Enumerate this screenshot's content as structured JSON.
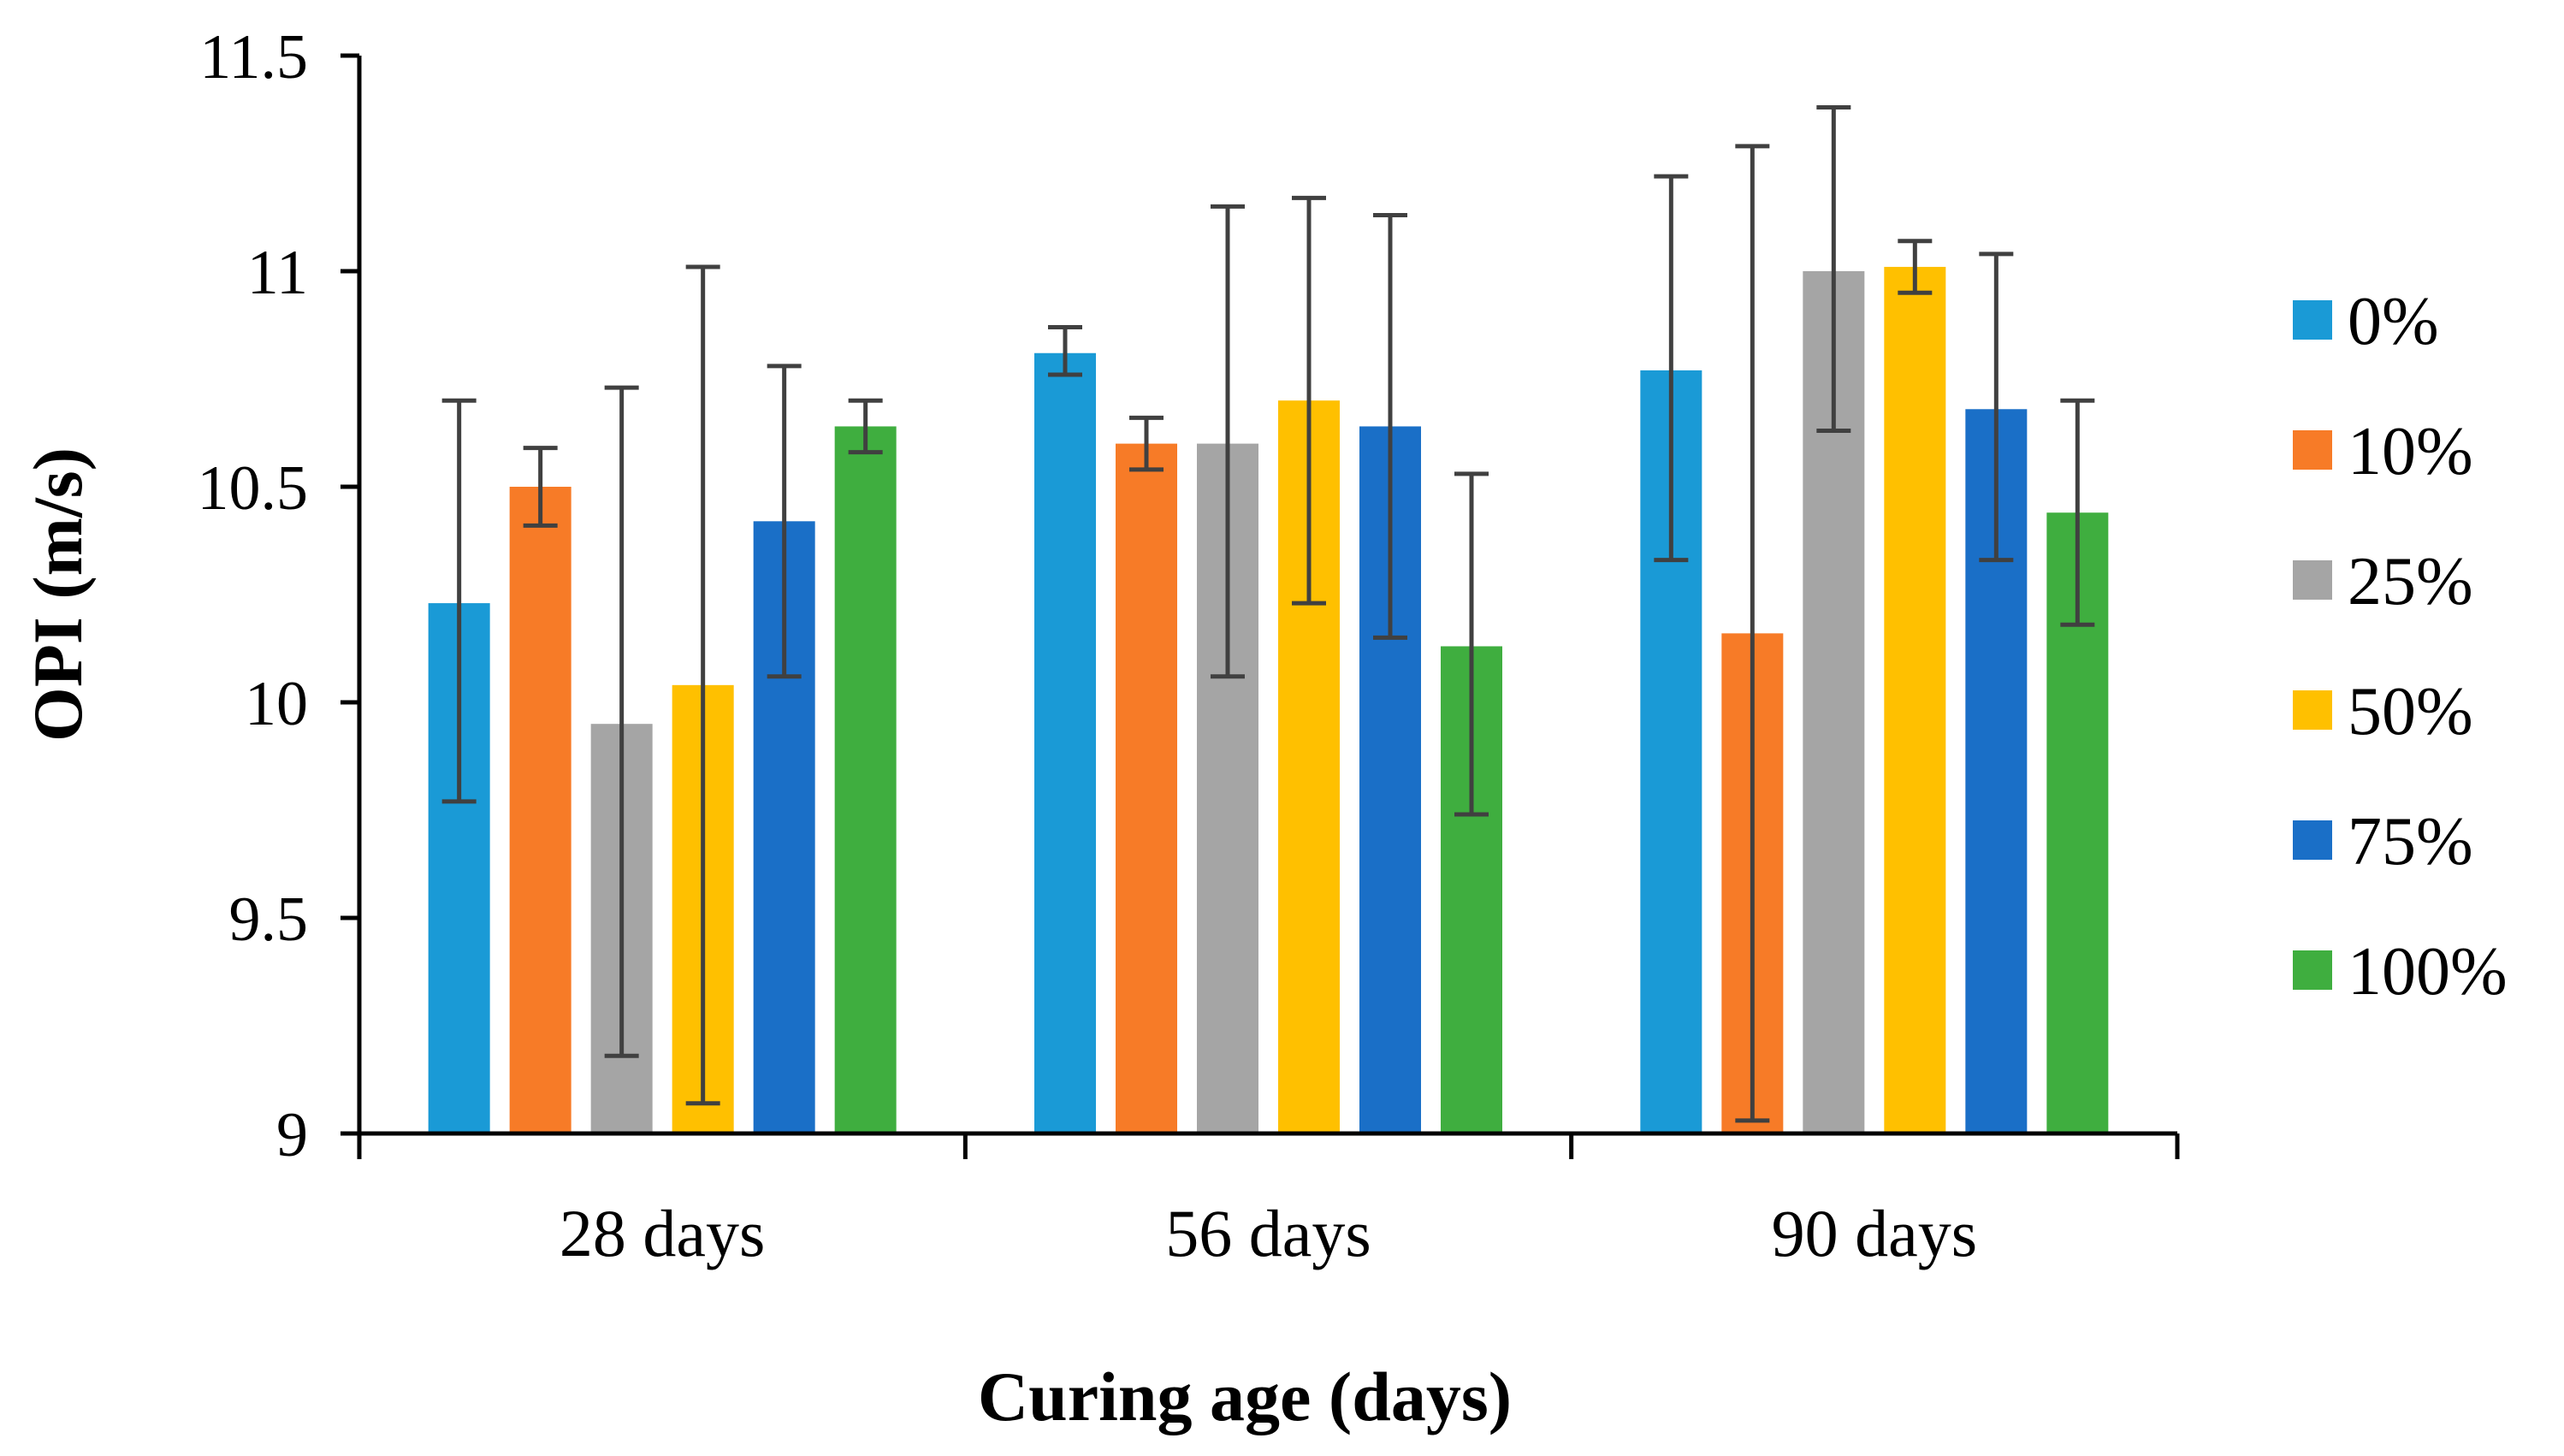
{
  "chart_data": {
    "type": "bar",
    "title": "",
    "xlabel": "Curing age (days)",
    "ylabel": "OPI (m/s)",
    "ylim": [
      9,
      11.5
    ],
    "yticks": [
      "9",
      "9.5",
      "10",
      "10.5",
      "11",
      "11.5"
    ],
    "ytick_values": [
      9,
      9.5,
      10,
      10.5,
      11,
      11.5
    ],
    "categories": [
      "28 days",
      "56 days",
      "90 days"
    ],
    "legend_position": "right",
    "series": [
      {
        "name": "0%",
        "color": "#1a9ad6",
        "values": [
          10.23,
          10.81,
          10.77
        ],
        "error_low": [
          9.77,
          10.76,
          10.33
        ],
        "error_high": [
          10.7,
          10.87,
          11.22
        ]
      },
      {
        "name": "10%",
        "color": "#f77b27",
        "values": [
          10.5,
          10.6,
          10.16
        ],
        "error_low": [
          10.41,
          10.54,
          9.03
        ],
        "error_high": [
          10.59,
          10.66,
          11.29
        ]
      },
      {
        "name": "25%",
        "color": "#a5a5a5",
        "values": [
          9.95,
          10.6,
          11.0
        ],
        "error_low": [
          9.18,
          10.06,
          10.63
        ],
        "error_high": [
          10.73,
          11.15,
          11.38
        ]
      },
      {
        "name": "50%",
        "color": "#ffc000",
        "values": [
          10.04,
          10.7,
          11.01
        ],
        "error_low": [
          9.07,
          10.23,
          10.95
        ],
        "error_high": [
          11.01,
          11.17,
          11.07
        ]
      },
      {
        "name": "75%",
        "color": "#1a6fc7",
        "values": [
          10.42,
          10.64,
          10.68
        ],
        "error_low": [
          10.06,
          10.15,
          10.33
        ],
        "error_high": [
          10.78,
          11.13,
          11.04
        ]
      },
      {
        "name": "100%",
        "color": "#3fae3f",
        "values": [
          10.64,
          10.13,
          10.44
        ],
        "error_low": [
          10.58,
          9.74,
          10.18
        ],
        "error_high": [
          10.7,
          10.53,
          10.7
        ]
      }
    ]
  }
}
